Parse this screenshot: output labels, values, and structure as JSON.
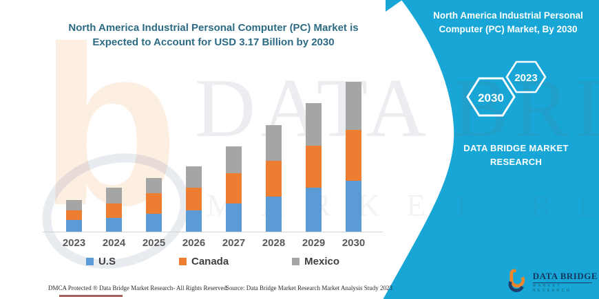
{
  "chart_data": {
    "type": "bar",
    "stacked": true,
    "title": "North America Industrial Personal Computer (PC) Market is Expected to Account for USD 3.17 Billion by 2030",
    "categories": [
      "2023",
      "2024",
      "2025",
      "2026",
      "2027",
      "2028",
      "2029",
      "2030"
    ],
    "series": [
      {
        "name": "U.S",
        "color": "#5b9bd5",
        "values": [
          0.25,
          0.29,
          0.38,
          0.45,
          0.59,
          0.74,
          0.93,
          1.07
        ]
      },
      {
        "name": "Canada",
        "color": "#ed7d31",
        "values": [
          0.21,
          0.31,
          0.43,
          0.48,
          0.64,
          0.76,
          0.89,
          1.08
        ]
      },
      {
        "name": "Mexico",
        "color": "#a5a5a5",
        "values": [
          0.22,
          0.33,
          0.32,
          0.45,
          0.57,
          0.76,
          0.9,
          1.02
        ]
      }
    ],
    "totals_estimated": [
      0.68,
      0.93,
      1.13,
      1.38,
      1.8,
      2.26,
      2.72,
      3.17
    ],
    "units": "USD Billion",
    "labeled_value": "USD 3.17 Billion by 2030",
    "xlabel": "",
    "ylabel": "",
    "ylim": [
      0,
      3.4
    ],
    "grid": false,
    "legend_position": "bottom",
    "value_axis_shown": false
  },
  "banner": {
    "color": "#17a6d5",
    "title": "North America Industrial Personal Computer (PC) Market, By 2030",
    "hexagons": [
      "2030",
      "2023"
    ],
    "brand": "DATA BRIDGE MARKET RESEARCH"
  },
  "logo": {
    "glyph": "b",
    "name": "DATA BRIDGE",
    "tagline": "MARKET RESEARCH"
  },
  "watermark": {
    "logo_glyph": "b",
    "line1": "DATA BRIDGE",
    "line2": "MARKET RESEARCH"
  },
  "footer": {
    "dmca": "DMCA Protected ® Data Bridge Market Research-  All Rights Reserved.",
    "source": "Source: Data Bridge Market Research  Market Analysis Study 2023"
  }
}
